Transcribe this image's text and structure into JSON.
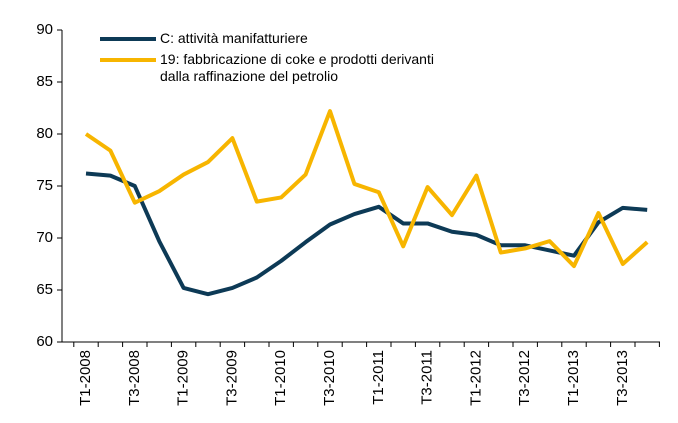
{
  "chart_data": {
    "type": "line",
    "categories": [
      "T1-2008",
      null,
      "T3-2008",
      null,
      "T1-2009",
      null,
      "T3-2009",
      null,
      "T1-2010",
      null,
      "T3-2010",
      null,
      "T1-2011",
      null,
      "T3-2011",
      null,
      "T1-2012",
      null,
      "T3-2012",
      null,
      "T1-2013",
      null,
      "T3-2013",
      null
    ],
    "series": [
      {
        "name": "C: attività manifatturiere",
        "color": "#0d3a56",
        "values": [
          76.2,
          76.0,
          75.0,
          69.7,
          65.2,
          64.6,
          65.2,
          66.2,
          67.8,
          69.6,
          71.3,
          72.3,
          73.0,
          71.4,
          71.4,
          70.6,
          70.3,
          69.3,
          69.3,
          68.8,
          68.3,
          71.5,
          72.9,
          72.7
        ]
      },
      {
        "name": "19: fabbricazione di coke e prodotti derivanti dalla raffinazione del petrolio",
        "color": "#f7b500",
        "values": [
          80.0,
          78.4,
          73.4,
          74.5,
          76.1,
          77.3,
          79.6,
          73.5,
          73.9,
          76.1,
          82.2,
          75.2,
          74.4,
          69.2,
          74.9,
          72.2,
          76.0,
          68.6,
          69.0,
          69.7,
          67.3,
          72.4,
          67.5,
          69.6
        ]
      }
    ],
    "ylim": [
      60,
      90
    ],
    "yticks": [
      60,
      65,
      70,
      75,
      80,
      85,
      90
    ],
    "grid": false
  }
}
